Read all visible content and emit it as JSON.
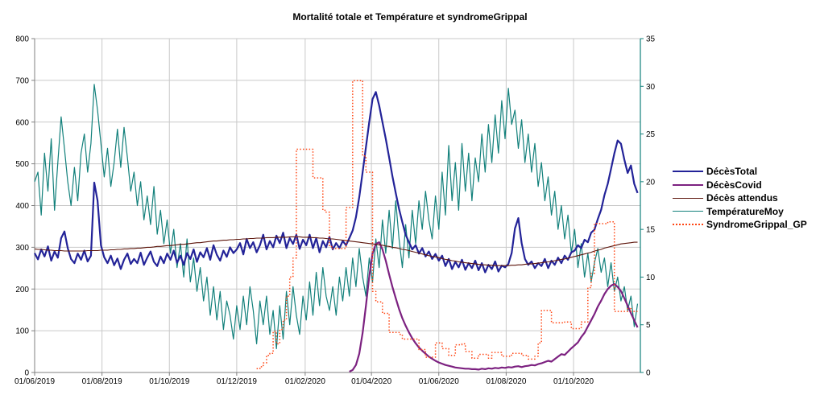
{
  "title": "Mortalité totale et Température et syndromeGrippal",
  "colors": {
    "background": "#ffffff",
    "grid": "#c9c9c9",
    "axis": "#808080",
    "right_axis": "#12807b",
    "text": "#000000"
  },
  "chart_data": {
    "type": "line",
    "title": "Mortalité totale et Température et syndromeGrippal",
    "grid": true,
    "legend_position": "right",
    "x_axis": {
      "start_date": "01/06/2019",
      "step_days": 3,
      "tick_labels": [
        "01/06/2019",
        "01/08/2019",
        "01/10/2019",
        "01/12/2019",
        "01/02/2020",
        "01/04/2020",
        "01/06/2020",
        "01/08/2020",
        "01/10/2020"
      ],
      "tick_day_offsets": [
        0,
        61,
        122,
        183,
        245,
        305,
        366,
        427,
        488
      ],
      "days_per_2month_tick": 61,
      "total_days_shown": 549
    },
    "y_axis_left": {
      "min": 0,
      "max": 800,
      "tick_step": 100,
      "ticks": [
        0,
        100,
        200,
        300,
        400,
        500,
        600,
        700,
        800
      ]
    },
    "y_axis_right": {
      "min": 0,
      "max": 35,
      "tick_step": 5,
      "ticks": [
        0,
        5,
        10,
        15,
        20,
        25,
        30,
        35
      ]
    },
    "series": [
      {
        "name": "DécèsTotal",
        "axis": "left",
        "color": "#232398",
        "width": 2.2,
        "style": "solid",
        "step": false,
        "start_index": 0,
        "values": [
          286,
          271,
          295,
          278,
          302,
          268,
          290,
          275,
          322,
          338,
          298,
          272,
          262,
          285,
          270,
          292,
          266,
          280,
          455,
          412,
          305,
          276,
          262,
          280,
          257,
          273,
          248,
          270,
          285,
          260,
          272,
          262,
          287,
          258,
          275,
          290,
          265,
          255,
          278,
          262,
          285,
          270,
          292,
          263,
          280,
          258,
          286,
          272,
          295,
          265,
          288,
          276,
          298,
          270,
          305,
          282,
          268,
          292,
          277,
          300,
          286,
          295,
          310,
          283,
          320,
          298,
          312,
          288,
          305,
          330,
          295,
          315,
          300,
          328,
          310,
          335,
          298,
          322,
          308,
          330,
          296,
          318,
          305,
          330,
          298,
          322,
          288,
          315,
          300,
          325,
          295,
          310,
          298,
          315,
          305,
          322,
          340,
          372,
          420,
          480,
          540,
          600,
          655,
          672,
          640,
          600,
          560,
          515,
          470,
          430,
          392,
          360,
          330,
          312,
          295,
          305,
          285,
          298,
          278,
          290,
          272,
          284,
          268,
          280,
          255,
          272,
          248,
          265,
          252,
          270,
          246,
          262,
          250,
          268,
          245,
          262,
          240,
          258,
          248,
          266,
          242,
          256,
          252,
          260,
          286,
          345,
          370,
          310,
          272,
          258,
          266,
          250,
          262,
          255,
          272,
          250,
          268,
          258,
          275,
          262,
          280,
          270,
          288,
          292,
          305,
          298,
          318,
          312,
          335,
          342,
          368,
          390,
          425,
          452,
          488,
          525,
          556,
          548,
          510,
          478,
          496,
          452,
          430
        ]
      },
      {
        "name": "DécèsCovid",
        "axis": "left",
        "color": "#7c2180",
        "width": 2.2,
        "style": "solid",
        "step": false,
        "start_index": 95,
        "values": [
          2,
          6,
          18,
          45,
          95,
          160,
          230,
          285,
          308,
          312,
          295,
          268,
          235,
          205,
          178,
          152,
          130,
          112,
          96,
          82,
          70,
          60,
          52,
          45,
          38,
          33,
          28,
          24,
          21,
          18,
          16,
          14,
          12,
          11,
          10,
          9,
          9,
          8,
          8,
          7,
          9,
          8,
          10,
          9,
          11,
          10,
          12,
          11,
          13,
          12,
          14,
          15,
          13,
          15,
          16,
          18,
          17,
          20,
          22,
          25,
          28,
          26,
          32,
          38,
          44,
          42,
          50,
          58,
          65,
          72,
          85,
          95,
          110,
          125,
          140,
          158,
          172,
          188,
          200,
          208,
          212,
          205,
          195,
          178,
          160,
          142,
          125,
          108
        ]
      },
      {
        "name": "Décès attendus",
        "axis": "left",
        "color": "#5c140a",
        "width": 1.1,
        "style": "solid",
        "step": false,
        "start_index": 0,
        "values": [
          296,
          295,
          295,
          294,
          293,
          293,
          292,
          292,
          292,
          291,
          291,
          291,
          291,
          291,
          291,
          291,
          292,
          292,
          292,
          292,
          293,
          293,
          293,
          294,
          294,
          295,
          295,
          296,
          296,
          297,
          297,
          298,
          298,
          299,
          300,
          300,
          301,
          302,
          302,
          303,
          304,
          304,
          305,
          306,
          307,
          307,
          308,
          309,
          310,
          311,
          311,
          312,
          313,
          314,
          315,
          315,
          316,
          317,
          317,
          318,
          318,
          319,
          319,
          320,
          320,
          321,
          321,
          322,
          322,
          322,
          323,
          323,
          323,
          324,
          324,
          324,
          324,
          325,
          325,
          325,
          325,
          324,
          324,
          324,
          323,
          323,
          322,
          322,
          321,
          320,
          320,
          319,
          318,
          317,
          316,
          315,
          314,
          313,
          312,
          311,
          310,
          309,
          308,
          307,
          306,
          305,
          303,
          302,
          300,
          299,
          297,
          295,
          294,
          292,
          290,
          288,
          286,
          284,
          282,
          280,
          278,
          277,
          275,
          273,
          271,
          270,
          268,
          267,
          265,
          264,
          263,
          262,
          261,
          260,
          259,
          258,
          258,
          257,
          257,
          256,
          256,
          256,
          256,
          256,
          257,
          257,
          258,
          258,
          259,
          260,
          260,
          261,
          262,
          263,
          264,
          265,
          266,
          268,
          269,
          271,
          272,
          274,
          276,
          278,
          280,
          282,
          284,
          286,
          288,
          291,
          293,
          295,
          298,
          300,
          302,
          304,
          306,
          308,
          309,
          310,
          311,
          312,
          312
        ]
      },
      {
        "name": "TempératureMoy",
        "axis": "right",
        "color": "#12807b",
        "width": 1.2,
        "style": "solid",
        "step": false,
        "start_index": 0,
        "values": [
          20,
          21,
          16.5,
          23,
          19,
          24.5,
          17,
          22,
          26.8,
          23.5,
          20,
          17.5,
          21.5,
          18,
          23,
          25,
          21,
          24,
          30.2,
          27.5,
          24,
          20.5,
          23.5,
          19.5,
          22,
          25.5,
          21.5,
          25.7,
          22.5,
          19,
          21,
          17.5,
          20,
          16,
          18.5,
          15.5,
          19.5,
          14.5,
          17,
          13.5,
          16,
          12.5,
          15,
          11,
          13.5,
          10,
          14,
          9.5,
          12,
          8.5,
          11,
          7.5,
          10,
          6,
          9,
          5.5,
          8.5,
          4.5,
          7.5,
          6,
          3.5,
          7,
          4.5,
          8,
          5,
          9,
          6.5,
          3,
          7.5,
          5,
          8,
          4,
          6.5,
          2.5,
          7,
          3.5,
          8.5,
          5,
          9,
          6,
          4,
          8,
          5.5,
          9.5,
          6,
          10.5,
          7,
          11,
          8,
          6.5,
          9,
          6,
          10,
          7.5,
          11,
          8,
          12,
          9,
          13,
          10,
          8,
          12,
          9.5,
          14,
          11,
          16,
          12.5,
          17,
          13,
          18,
          14,
          11,
          15.5,
          12,
          17,
          13.5,
          18,
          15,
          19,
          16,
          14,
          18.5,
          15,
          21,
          16.5,
          23.8,
          18,
          22,
          17,
          24,
          19,
          23,
          18,
          22.5,
          20,
          25,
          21,
          26,
          22,
          27,
          23,
          28.5,
          24.5,
          29.8,
          26,
          27.5,
          23.5,
          26.5,
          22,
          25,
          21,
          24,
          19.5,
          22,
          18,
          20.5,
          16.5,
          19,
          15,
          17.5,
          14,
          16.5,
          12.5,
          15,
          11,
          13.5,
          10,
          12.5,
          9.5,
          11.5,
          13,
          10.5,
          12,
          9,
          11.5,
          8.5,
          10,
          7.5,
          9,
          6.5,
          8,
          4.8,
          7.2
        ]
      },
      {
        "name": "SyndromeGrippal_GP",
        "axis": "right",
        "color": "#ff4513",
        "width": 1.5,
        "style": "dotted",
        "step": true,
        "start_index": 67,
        "values": [
          0.4,
          0.6,
          1.0,
          1.8,
          2.0,
          4.3,
          3.0,
          4.5,
          5.5,
          8.0,
          10.0,
          12.0,
          23.4,
          23.4,
          23.4,
          23.4,
          23.4,
          20.4,
          20.4,
          20.4,
          17.0,
          16.8,
          13.2,
          13.0,
          13.0,
          13.0,
          13.0,
          17.3,
          17.3,
          30.6,
          30.6,
          30.6,
          22.7,
          21.0,
          21.0,
          8.5,
          7.4,
          7.4,
          6.2,
          6.2,
          4.2,
          4.2,
          4.2,
          4.0,
          3.5,
          3.5,
          3.5,
          3.5,
          3.5,
          2.4,
          2.4,
          1.6,
          1.6,
          1.6,
          3.1,
          3.1,
          2.5,
          2.5,
          1.8,
          1.8,
          2.9,
          2.9,
          3.0,
          2.2,
          2.2,
          1.5,
          1.5,
          1.9,
          1.9,
          1.9,
          1.5,
          2.1,
          2.1,
          2.1,
          1.7,
          1.7,
          1.7,
          2.0,
          2.0,
          2.0,
          1.8,
          1.8,
          1.4,
          1.4,
          1.7,
          3.1,
          6.5,
          6.5,
          6.5,
          5.2,
          5.2,
          5.2,
          5.2,
          5.3,
          5.3,
          4.6,
          4.6,
          4.6,
          5.3,
          5.3,
          8.9,
          10.4,
          15.6,
          15.6,
          15.6,
          15.6,
          15.8,
          15.8,
          6.4,
          6.4,
          6.4,
          6.4,
          6.7,
          6.4,
          6.4,
          6.4
        ]
      }
    ]
  }
}
